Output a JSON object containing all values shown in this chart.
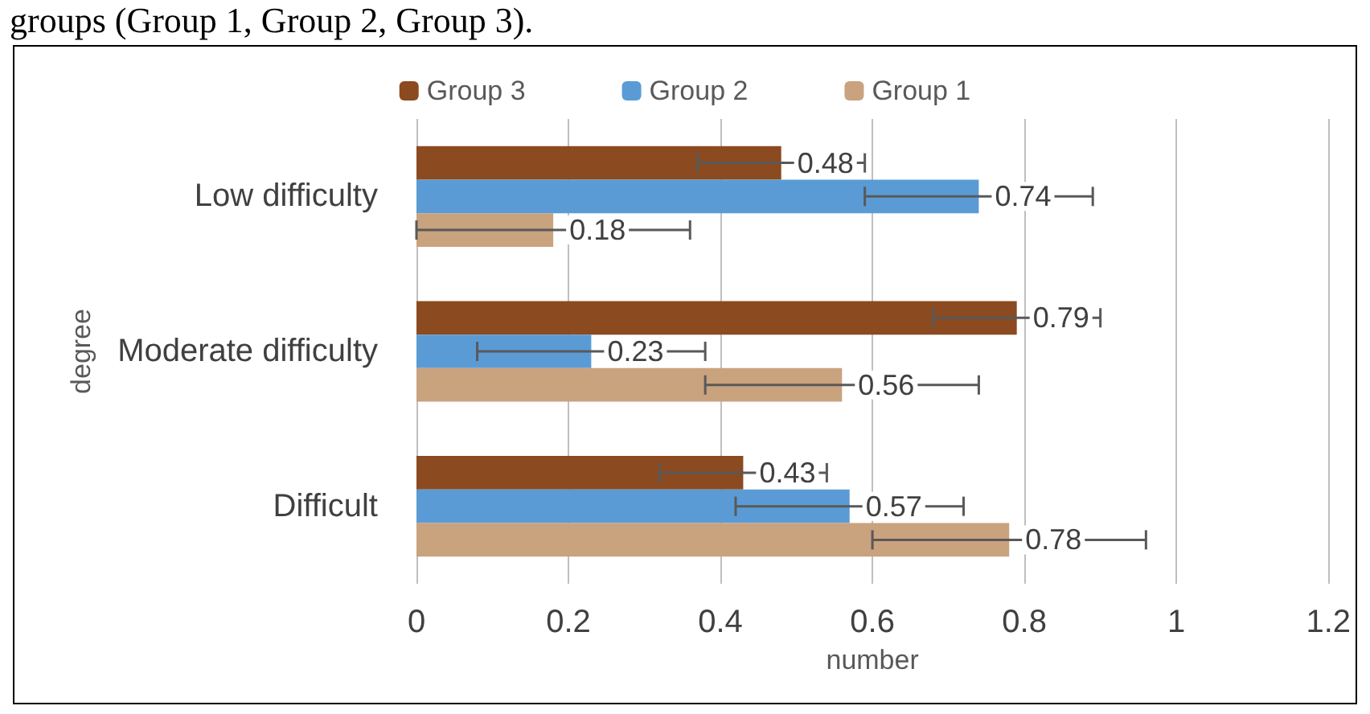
{
  "chart_data": {
    "type": "bar",
    "orientation": "horizontal",
    "annotations": [
      "groups (Group 1, Group 2, Group 3)."
    ],
    "xlabel": "number",
    "ylabel": "degree",
    "categories": [
      "Low difficulty",
      "Moderate difficulty",
      "Difficult"
    ],
    "series": [
      {
        "name": "Group 3",
        "color": "#8b4a1f",
        "values": [
          0.48,
          0.79,
          0.43
        ],
        "errors": [
          0.11,
          0.11,
          0.11
        ]
      },
      {
        "name": "Group 2",
        "color": "#5b9bd5",
        "values": [
          0.74,
          0.23,
          0.57
        ],
        "errors": [
          0.15,
          0.15,
          0.15
        ]
      },
      {
        "name": "Group 1",
        "color": "#c9a27e",
        "values": [
          0.18,
          0.56,
          0.78
        ],
        "errors": [
          0.18,
          0.18,
          0.18
        ]
      }
    ],
    "xlim": [
      0,
      1.2
    ],
    "xticks": [
      0,
      0.2,
      0.4,
      0.6,
      0.8,
      1,
      1.2
    ],
    "grid": "x",
    "legend": "top",
    "data_labels": true
  }
}
